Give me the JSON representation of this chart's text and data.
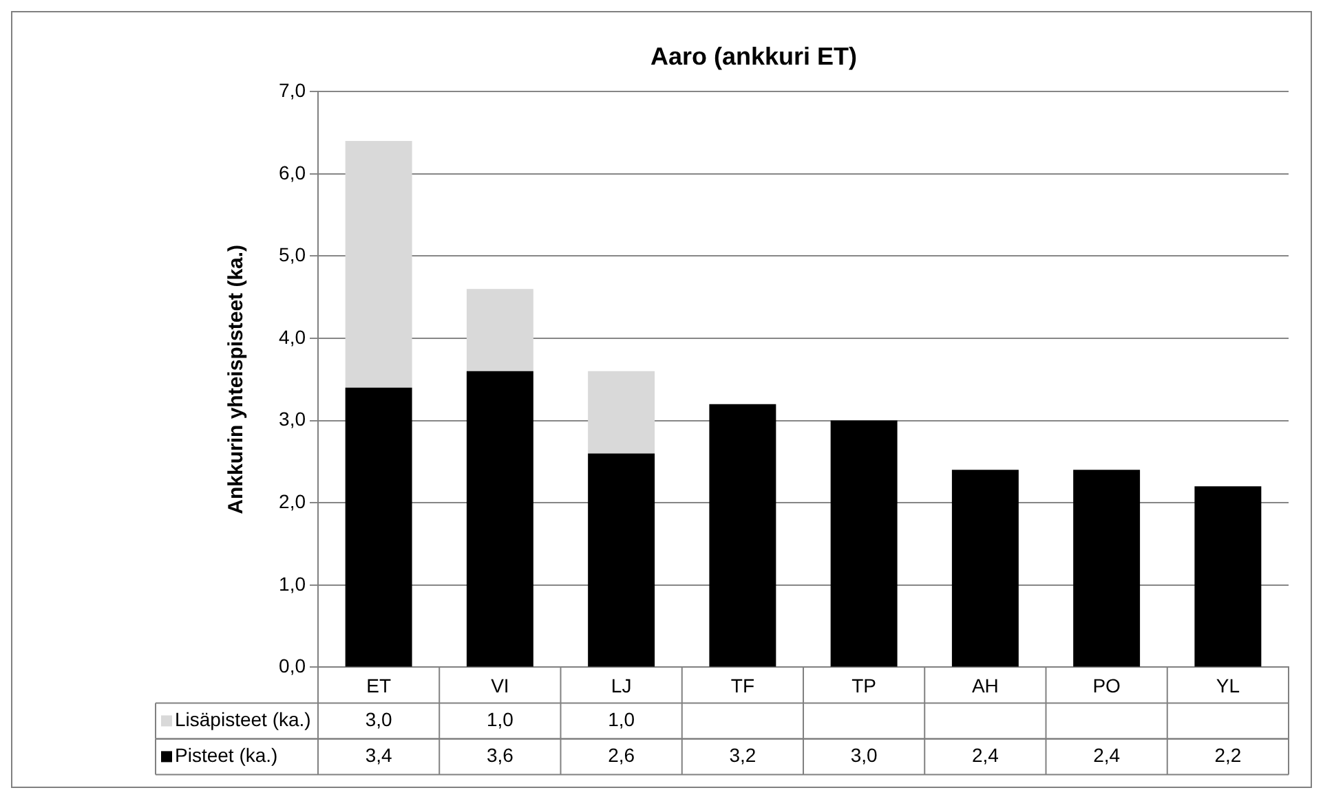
{
  "chart_data": {
    "type": "bar",
    "title": "Aaro (ankkuri ET)",
    "ylabel": "Ankkurin yhteispisteet (ka.)",
    "categories": [
      "ET",
      "VI",
      "LJ",
      "TF",
      "TP",
      "AH",
      "PO",
      "YL"
    ],
    "stacked": true,
    "legend": "bottom",
    "grid": "y",
    "ylim": [
      0,
      7
    ],
    "yticks": [
      {
        "value": 0,
        "label": "0,0"
      },
      {
        "value": 1,
        "label": "1,0"
      },
      {
        "value": 2,
        "label": "2,0"
      },
      {
        "value": 3,
        "label": "3,0"
      },
      {
        "value": 4,
        "label": "4,0"
      },
      {
        "value": 5,
        "label": "5,0"
      },
      {
        "value": 6,
        "label": "6,0"
      },
      {
        "value": 7,
        "label": "7,0"
      }
    ],
    "series": [
      {
        "name": "Pisteet (ka.)",
        "color": "#000000",
        "values": [
          3.4,
          3.6,
          2.6,
          3.2,
          3.0,
          2.4,
          2.4,
          2.2
        ],
        "value_labels": [
          "3,4",
          "3,6",
          "2,6",
          "3,2",
          "3,0",
          "2,4",
          "2,4",
          "2,2"
        ]
      },
      {
        "name": "Lisäpisteet (ka.)",
        "color": "#d9d9d9",
        "values": [
          3.0,
          1.0,
          1.0,
          null,
          null,
          null,
          null,
          null
        ],
        "value_labels": [
          "3,0",
          "1,0",
          "1,0",
          null,
          null,
          null,
          null,
          null
        ]
      }
    ]
  }
}
